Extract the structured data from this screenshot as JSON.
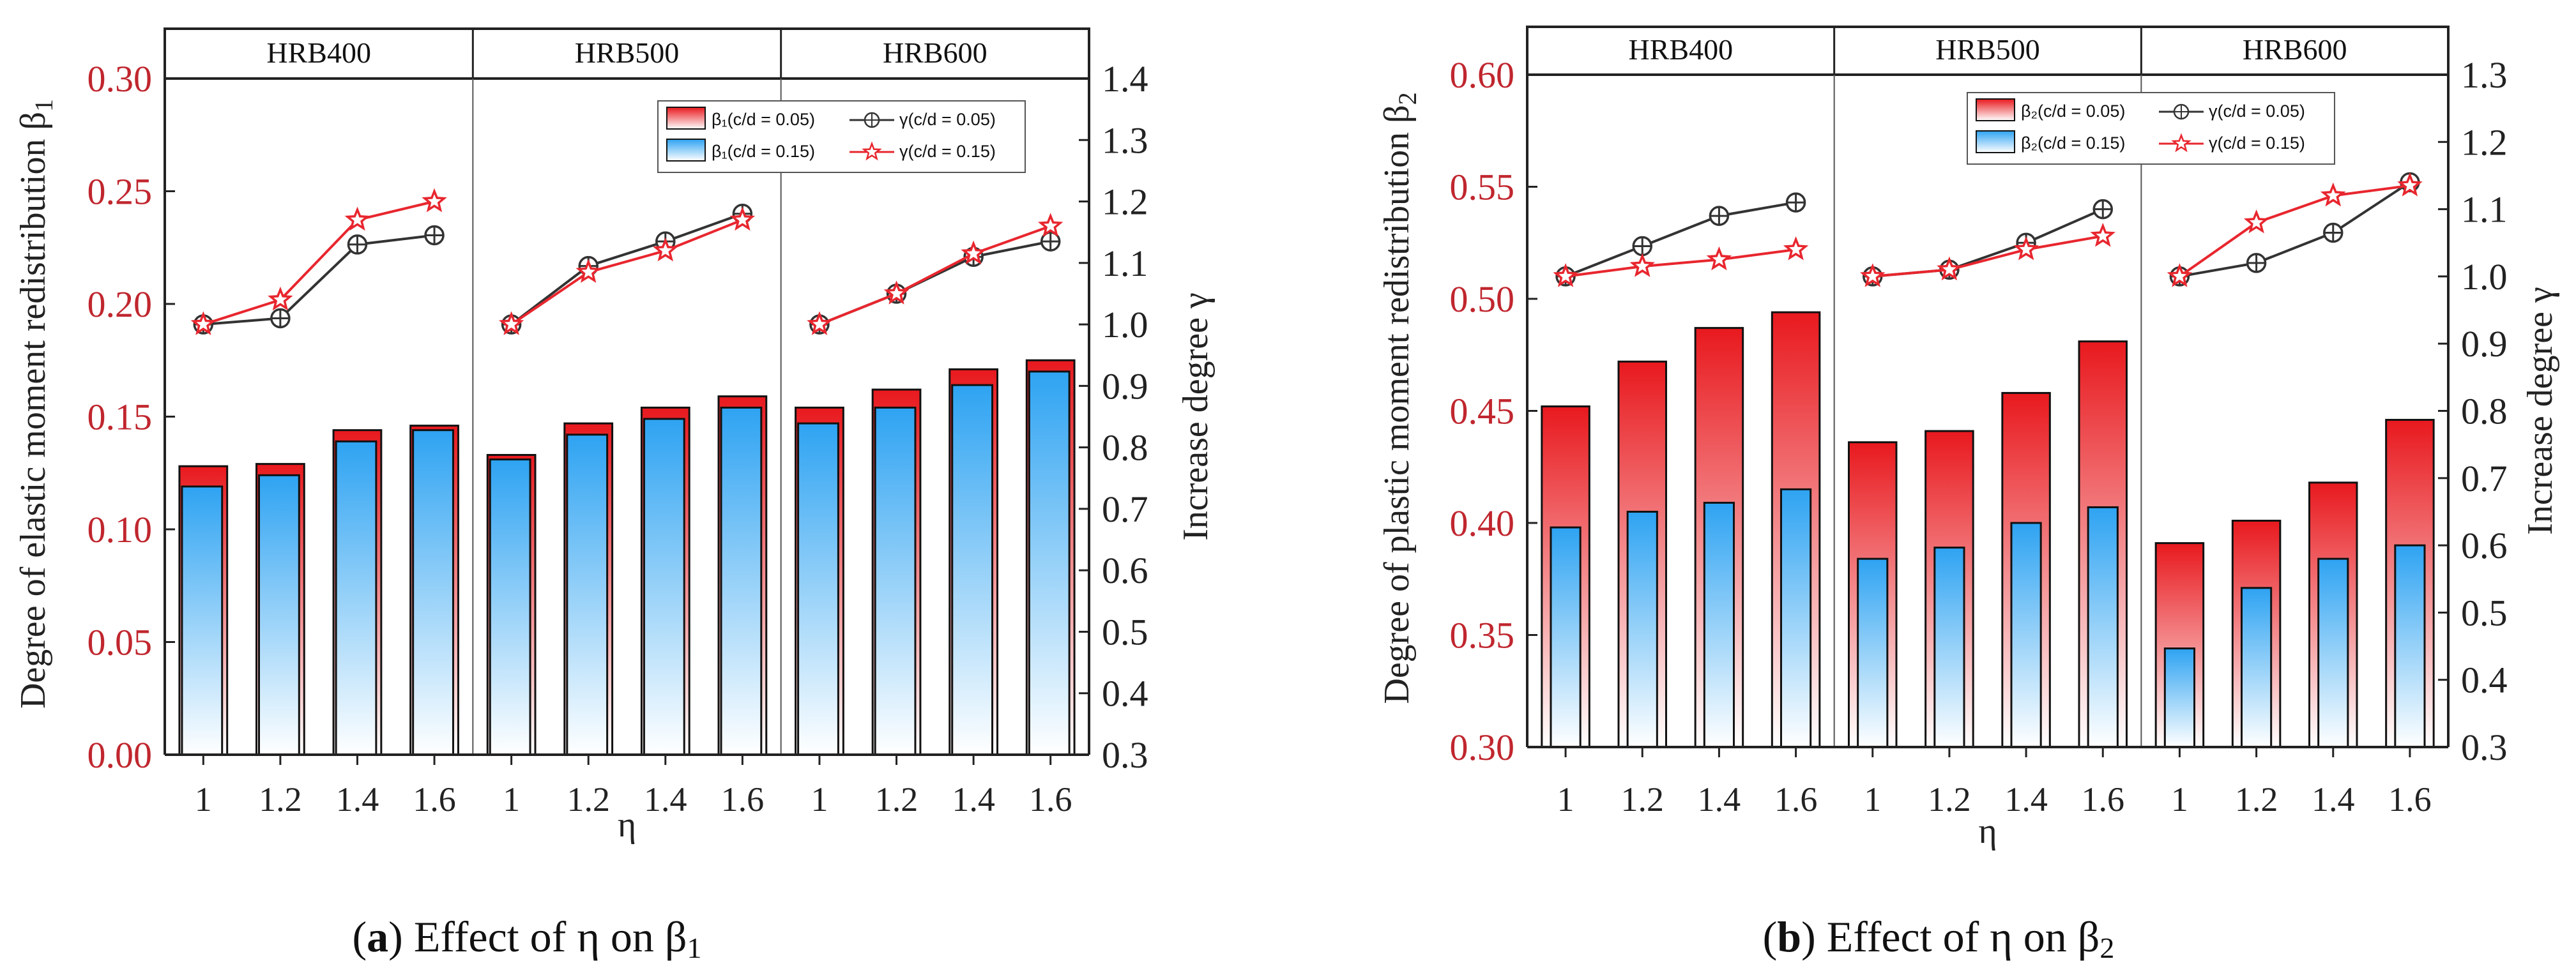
{
  "colors": {
    "left_axis": "#c0262e",
    "axis": "#222222",
    "bar_red": "#e8191e",
    "bar_blue": "#2ea3f2",
    "line_black": "#333333",
    "line_red": "#e8262e",
    "divider": "#555555"
  },
  "chart_data": [
    {
      "type": "bar",
      "panel": "a",
      "caption_letter": "a",
      "caption_text": "Effect of η on β",
      "caption_sub": "1",
      "groups": [
        "HRB400",
        "HRB500",
        "HRB600"
      ],
      "categories": [
        "1",
        "1.2",
        "1.4",
        "1.6"
      ],
      "xlabel": "η",
      "ylabel": "Degree of elastic moment redistribution β",
      "ylabel_sub": "1",
      "y2label": "Increase degree γ",
      "ylim": [
        0,
        0.3
      ],
      "yticks": [
        "0.00",
        "0.05",
        "0.10",
        "0.15",
        "0.20",
        "0.25",
        "0.30"
      ],
      "y2lim": [
        0.3,
        1.4
      ],
      "y2ticks": [
        "0.3",
        "0.4",
        "0.5",
        "0.6",
        "0.7",
        "0.8",
        "0.9",
        "1.0",
        "1.1",
        "1.2",
        "1.3",
        "1.4"
      ],
      "legend": {
        "bar1": "β₁(c/d = 0.05)",
        "bar2": "β₁(c/d = 0.15)",
        "line1": "γ(c/d = 0.05)",
        "line2": "γ(c/d = 0.15)",
        "position": "top-right"
      },
      "bar_series": [
        {
          "name": "β₁(c/d = 0.05)",
          "values": [
            0.128,
            0.129,
            0.144,
            0.146,
            0.133,
            0.147,
            0.154,
            0.159,
            0.154,
            0.162,
            0.171,
            0.175
          ]
        },
        {
          "name": "β₁(c/d = 0.15)",
          "values": [
            0.119,
            0.124,
            0.139,
            0.144,
            0.131,
            0.142,
            0.149,
            0.154,
            0.147,
            0.154,
            0.164,
            0.17
          ]
        }
      ],
      "line_series": [
        {
          "name": "γ(c/d = 0.05)",
          "values": [
            1.0,
            1.01,
            1.13,
            1.145,
            1.0,
            1.095,
            1.135,
            1.18,
            1.0,
            1.05,
            1.11,
            1.135
          ]
        },
        {
          "name": "γ(c/d = 0.15)",
          "values": [
            1.0,
            1.04,
            1.17,
            1.2,
            1.0,
            1.085,
            1.12,
            1.17,
            1.0,
            1.05,
            1.115,
            1.16
          ]
        }
      ]
    },
    {
      "type": "bar",
      "panel": "b",
      "caption_letter": "b",
      "caption_text": "Effect of η on β",
      "caption_sub": "2",
      "groups": [
        "HRB400",
        "HRB500",
        "HRB600"
      ],
      "categories": [
        "1",
        "1.2",
        "1.4",
        "1.6"
      ],
      "xlabel": "η",
      "ylabel": "Degree of plastic moment redistribution β",
      "ylabel_sub": "2",
      "y2label": "Increase degree γ",
      "ylim": [
        0.3,
        0.6
      ],
      "yticks": [
        "0.30",
        "0.35",
        "0.40",
        "0.45",
        "0.50",
        "0.55",
        "0.60"
      ],
      "y2lim": [
        0.3,
        1.3
      ],
      "y2ticks": [
        "0.3",
        "0.4",
        "0.5",
        "0.6",
        "0.7",
        "0.8",
        "0.9",
        "1.0",
        "1.1",
        "1.2",
        "1.3"
      ],
      "legend": {
        "bar1": "β₂(c/d = 0.05)",
        "bar2": "β₂(c/d = 0.15)",
        "line1": "γ(c/d = 0.05)",
        "line2": "γ(c/d = 0.15)",
        "position": "top-right"
      },
      "bar_series": [
        {
          "name": "β₂(c/d = 0.05)",
          "values": [
            0.452,
            0.472,
            0.487,
            0.494,
            0.436,
            0.441,
            0.458,
            0.481,
            0.391,
            0.401,
            0.418,
            0.446
          ]
        },
        {
          "name": "β₂(c/d = 0.15)",
          "values": [
            0.398,
            0.405,
            0.409,
            0.415,
            0.384,
            0.389,
            0.4,
            0.407,
            0.344,
            0.371,
            0.384,
            0.39
          ]
        }
      ],
      "line_series": [
        {
          "name": "γ(c/d = 0.05)",
          "values": [
            1.0,
            1.045,
            1.09,
            1.11,
            1.0,
            1.01,
            1.05,
            1.1,
            1.0,
            1.02,
            1.065,
            1.14
          ]
        },
        {
          "name": "γ(c/d = 0.15)",
          "values": [
            1.0,
            1.015,
            1.025,
            1.04,
            1.0,
            1.01,
            1.04,
            1.06,
            1.0,
            1.08,
            1.12,
            1.135
          ]
        }
      ]
    }
  ]
}
